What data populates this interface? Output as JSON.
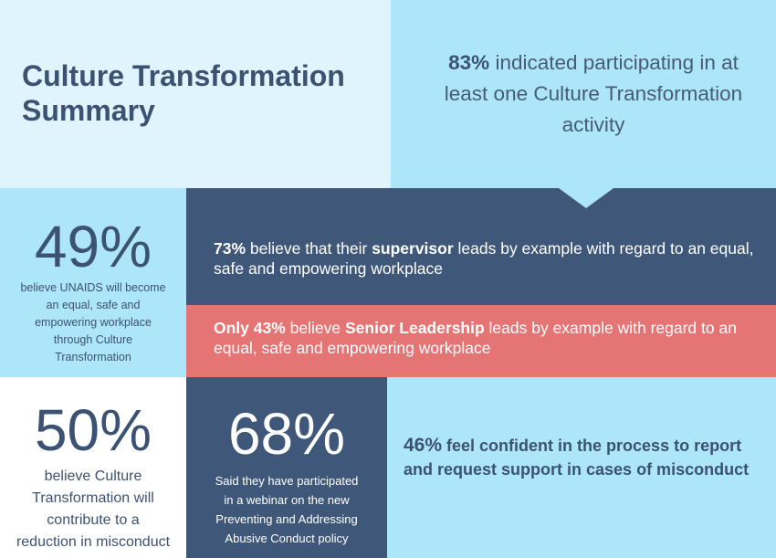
{
  "title": {
    "line1": "Culture Transformation",
    "line2": "Summary"
  },
  "stat_83": {
    "value": "83%",
    "line1_rest": " indicated participating in at",
    "line2": "least one Culture Transformation",
    "line3": "activity"
  },
  "stat_49": {
    "value": "49%",
    "lines": [
      "believe UNAIDS will become",
      "an equal, safe and",
      "empowering workplace",
      "through Culture",
      "Transformation"
    ]
  },
  "stat_73": {
    "value": "73%",
    "text_a": " believe that their ",
    "keyword": "supervisor",
    "text_b": " leads by example with regard to an equal, safe and empowering workplace"
  },
  "stat_43": {
    "value": "Only 43%",
    "text_a": " believe ",
    "keyword": "Senior Leadership",
    "text_b": " leads by example with regard to an equal, safe and empowering workplace"
  },
  "stat_50": {
    "value": "50%",
    "lines": [
      "believe Culture",
      "Transformation will",
      "contribute to a",
      "reduction in misconduct"
    ]
  },
  "stat_68": {
    "value": "68%",
    "lines": [
      "Said they have participated",
      "in a webinar on the new",
      "Preventing and Addressing",
      "Abusive Conduct policy"
    ]
  },
  "stat_46": {
    "value": "46%",
    "text": "  feel confident in the process to report and request support in cases of misconduct"
  },
  "colors": {
    "navy": "#3f5778",
    "light_blue": "#aee6f9",
    "pale_blue": "#dff4fd",
    "coral": "#e57575",
    "heading": "#3b5272"
  }
}
